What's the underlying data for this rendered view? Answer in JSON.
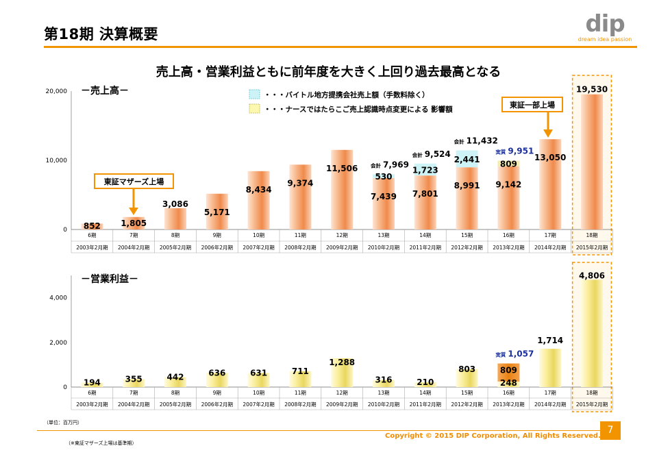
{
  "header": {
    "title": "第18期 決算概要",
    "logo_word": "dip",
    "logo_tagline": "dream idea passion"
  },
  "headline": "売上高・営業利益ともに前年度を大きく上回り過去最高となる",
  "legend": {
    "cyan": "・・・バイトル地方提携会社売上額（手数料除く）",
    "yellow": "・・・ナースではたらこご売上認識時点変更による 影響額"
  },
  "callouts": {
    "mothers": "東証マザーズ上場",
    "first_section": "東証一部上場"
  },
  "footer": {
    "unit": "（単位：百万円）",
    "note": "（※東証マザーズ上場は基準期）",
    "copyright": "Copyright © 2015 DIP Corporation, All Rights Reserved.",
    "page": "7"
  },
  "colors": {
    "orange": "#f29400",
    "bar_orange": "#f7a978",
    "bar_yellow": "#f0e27a",
    "cyan": "#cdf3f6",
    "navy": "#1a2f9c",
    "grid": "#d9d9d9"
  },
  "chart_data": [
    {
      "type": "bar",
      "title": "－売上高－",
      "periods": [
        "6期",
        "7期",
        "8期",
        "9期",
        "10期",
        "11期",
        "12期",
        "13期",
        "14期",
        "15期",
        "16期",
        "17期",
        "18期"
      ],
      "fiscal_years": [
        "2003年2月期",
        "2004年2月期",
        "2005年2月期",
        "2006年2月期",
        "2007年2月期",
        "2008年2月期",
        "2009年2月期",
        "2010年2月期",
        "2011年2月期",
        "2012年2月期",
        "2013年2月期",
        "2014年2月期",
        "2015年2月期"
      ],
      "ylim": [
        0,
        20000
      ],
      "yticks": [
        "0",
        "10,000",
        "20,000"
      ],
      "series": [
        {
          "name": "売上高",
          "values": [
            852,
            1805,
            3086,
            5171,
            8434,
            9374,
            11506,
            7439,
            7801,
            8991,
            9142,
            13050,
            19530
          ],
          "labels": [
            "852",
            "1,805",
            "3,086",
            "5,171",
            "8,434",
            "9,374",
            "11,506",
            "7,439",
            "7,801",
            "8,991",
            "9,142",
            "13,050",
            "19,530"
          ]
        },
        {
          "name": "バイトル地方提携会社売上額（手数料除く）",
          "values": [
            0,
            0,
            0,
            0,
            0,
            0,
            0,
            530,
            1723,
            2441,
            0,
            0,
            0
          ],
          "labels": [
            "",
            "",
            "",
            "",
            "",
            "",
            "",
            "530",
            "1,723",
            "2,441",
            "",
            "",
            ""
          ]
        },
        {
          "name": "ナースではたらこご売上認識時点変更による 影響額",
          "values": [
            0,
            0,
            0,
            0,
            0,
            0,
            0,
            0,
            0,
            0,
            809,
            0,
            0
          ],
          "labels": [
            "",
            "",
            "",
            "",
            "",
            "",
            "",
            "",
            "",
            "",
            "809",
            "",
            ""
          ]
        }
      ],
      "totals": [
        {
          "period": "13期",
          "prefix": "会計",
          "value": "7,969"
        },
        {
          "period": "14期",
          "prefix": "会計",
          "value": "9,524"
        },
        {
          "period": "15期",
          "prefix": "会計",
          "value": "11,432"
        },
        {
          "period": "16期",
          "prefix": "実質",
          "value": "9,951"
        }
      ]
    },
    {
      "type": "bar",
      "title": "－営業利益－",
      "periods": [
        "6期",
        "7期",
        "8期",
        "9期",
        "10期",
        "11期",
        "12期",
        "13期",
        "14期",
        "15期",
        "16期",
        "17期",
        "18期"
      ],
      "fiscal_years": [
        "2003年2月期",
        "2004年2月期",
        "2005年2月期",
        "2006年2月期",
        "2007年2月期",
        "2008年2月期",
        "2009年2月期",
        "2010年2月期",
        "2011年2月期",
        "2012年2月期",
        "2013年2月期",
        "2014年2月期",
        "2015年2月期"
      ],
      "ylim": [
        0,
        5000
      ],
      "yticks": [
        "0",
        "2,000",
        "4,000"
      ],
      "series": [
        {
          "name": "営業利益",
          "values": [
            194,
            355,
            442,
            636,
            631,
            711,
            1288,
            316,
            210,
            803,
            248,
            1714,
            4806
          ],
          "labels": [
            "194",
            "355",
            "442",
            "636",
            "631",
            "711",
            "1,288",
            "316",
            "210",
            "803",
            "248",
            "1,714",
            "4,806"
          ]
        },
        {
          "name": "ナースではたらこご売上認識時点変更による 影響額",
          "values": [
            0,
            0,
            0,
            0,
            0,
            0,
            0,
            0,
            0,
            0,
            809,
            0,
            0
          ],
          "labels": [
            "",
            "",
            "",
            "",
            "",
            "",
            "",
            "",
            "",
            "",
            "809",
            "",
            ""
          ]
        }
      ],
      "totals": [
        {
          "period": "16期",
          "prefix": "実質",
          "value": "1,057"
        }
      ]
    }
  ]
}
